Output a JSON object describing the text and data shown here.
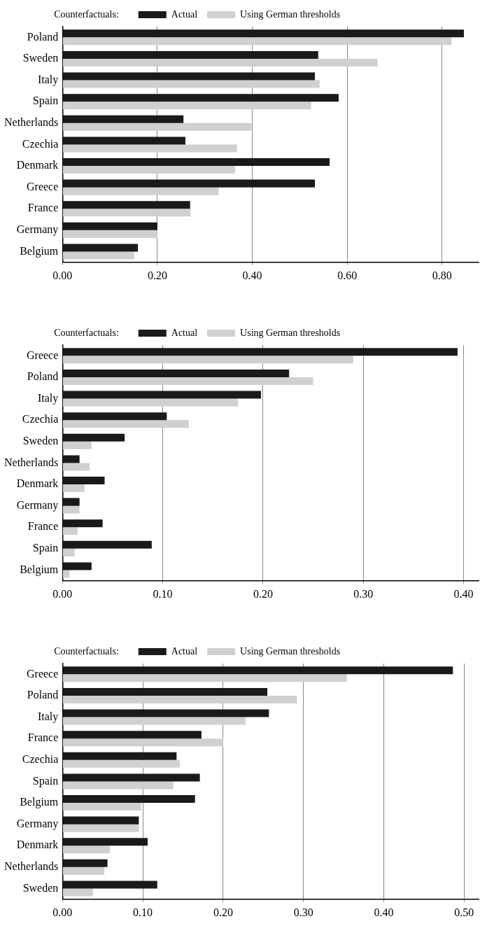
{
  "chart_data": [
    {
      "type": "bar",
      "orientation": "horizontal",
      "legend_title": "Counterfactuals:",
      "legend": "top",
      "grid": "x",
      "categories": [
        "Poland",
        "Sweden",
        "Italy",
        "Spain",
        "Netherlands",
        "Czechia",
        "Denmark",
        "Greece",
        "France",
        "Germany",
        "Belgium"
      ],
      "series": [
        {
          "name": "Actual",
          "color": "#1a1a1a",
          "values": [
            0.846,
            0.539,
            0.532,
            0.582,
            0.255,
            0.259,
            0.563,
            0.532,
            0.269,
            0.2,
            0.159
          ]
        },
        {
          "name": "Using German thresholds",
          "color": "#d0d0d0",
          "values": [
            0.82,
            0.664,
            0.542,
            0.524,
            0.398,
            0.368,
            0.364,
            0.329,
            0.27,
            0.2,
            0.151
          ]
        }
      ],
      "xlim": [
        0,
        0.877
      ],
      "xticks": [
        {
          "value": 0,
          "label": "0.00"
        },
        {
          "value": 0.2,
          "label": "0.20"
        },
        {
          "value": 0.4,
          "label": "0.40"
        },
        {
          "value": 0.6,
          "label": "0.60"
        },
        {
          "value": 0.8,
          "label": "0.80"
        }
      ]
    },
    {
      "type": "bar",
      "orientation": "horizontal",
      "legend_title": "Counterfactuals:",
      "legend": "top",
      "grid": "x",
      "categories": [
        "Greece",
        "Poland",
        "Italy",
        "Czechia",
        "Sweden",
        "Netherlands",
        "Denmark",
        "Germany",
        "France",
        "Spain",
        "Belgium"
      ],
      "series": [
        {
          "name": "Actual",
          "color": "#1a1a1a",
          "values": [
            0.394,
            0.226,
            0.198,
            0.104,
            0.062,
            0.017,
            0.042,
            0.017,
            0.04,
            0.089,
            0.029
          ]
        },
        {
          "name": "Using German thresholds",
          "color": "#d0d0d0",
          "values": [
            0.29,
            0.25,
            0.175,
            0.126,
            0.029,
            0.027,
            0.022,
            0.017,
            0.015,
            0.012,
            0.007
          ]
        }
      ],
      "xlim": [
        0,
        0.415
      ],
      "xticks": [
        {
          "value": 0,
          "label": "0.00"
        },
        {
          "value": 0.1,
          "label": "0.10"
        },
        {
          "value": 0.2,
          "label": "0.20"
        },
        {
          "value": 0.3,
          "label": "0.30"
        },
        {
          "value": 0.4,
          "label": "0.40"
        }
      ]
    },
    {
      "type": "bar",
      "orientation": "horizontal",
      "legend_title": "Counterfactuals:",
      "legend": "top",
      "grid": "x",
      "categories": [
        "Greece",
        "Poland",
        "Italy",
        "France",
        "Czechia",
        "Spain",
        "Belgium",
        "Germany",
        "Denmark",
        "Netherlands",
        "Sweden"
      ],
      "series": [
        {
          "name": "Actual",
          "color": "#1a1a1a",
          "values": [
            0.486,
            0.255,
            0.257,
            0.173,
            0.142,
            0.171,
            0.165,
            0.095,
            0.106,
            0.056,
            0.118
          ]
        },
        {
          "name": "Using German thresholds",
          "color": "#d0d0d0",
          "values": [
            0.354,
            0.292,
            0.228,
            0.2,
            0.146,
            0.138,
            0.098,
            0.095,
            0.059,
            0.052,
            0.038
          ]
        }
      ],
      "xlim": [
        0,
        0.518
      ],
      "xticks": [
        {
          "value": 0,
          "label": "0.00"
        },
        {
          "value": 0.1,
          "label": "0.10"
        },
        {
          "value": 0.2,
          "label": "0.20"
        },
        {
          "value": 0.3,
          "label": "0.30"
        },
        {
          "value": 0.4,
          "label": "0.40"
        },
        {
          "value": 0.5,
          "label": "0.50"
        }
      ]
    }
  ]
}
